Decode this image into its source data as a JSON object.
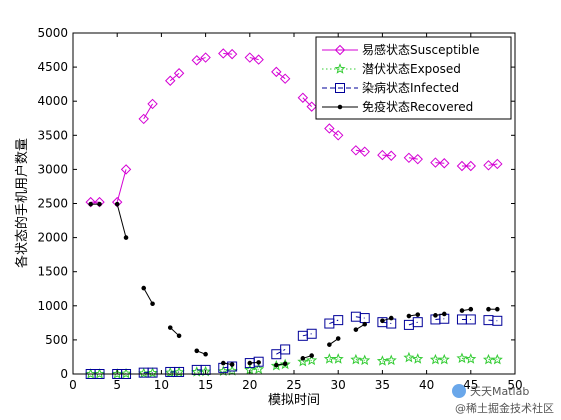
{
  "chart_data": {
    "type": "line",
    "title": "",
    "xlabel": "模拟时间",
    "ylabel": "各状态的手机用户数量",
    "xlim": [
      0,
      50
    ],
    "ylim": [
      0,
      5000
    ],
    "xticks": [
      "0",
      "5",
      "10",
      "15",
      "20",
      "25",
      "30",
      "35",
      "40",
      "45",
      "50"
    ],
    "yticks": [
      "0",
      "500",
      "1000",
      "1500",
      "2000",
      "2500",
      "3000",
      "3500",
      "4000",
      "4500",
      "5000"
    ],
    "grid": false,
    "legend_position": "top-right",
    "series": [
      {
        "name": "易感状态Susceptible",
        "color": "#d400d4",
        "marker": "diamond",
        "line": "solid",
        "x": [
          2,
          3,
          5,
          6,
          8,
          9,
          11,
          12,
          14,
          15,
          17,
          18,
          20,
          21,
          23,
          24,
          26,
          27,
          29,
          30,
          32,
          33,
          35,
          36,
          38,
          39,
          41,
          42,
          44,
          45,
          47,
          48
        ],
        "y": [
          2520,
          2520,
          2520,
          3000,
          3740,
          3960,
          4300,
          4410,
          4600,
          4640,
          4700,
          4690,
          4640,
          4610,
          4430,
          4330,
          4050,
          3920,
          3600,
          3500,
          3280,
          3260,
          3210,
          3200,
          3170,
          3150,
          3100,
          3090,
          3050,
          3050,
          3060,
          3080
        ]
      },
      {
        "name": "潜伏状态Exposed",
        "color": "#33cc33",
        "marker": "star",
        "line": "dotted",
        "x": [
          2,
          3,
          5,
          6,
          8,
          9,
          11,
          12,
          14,
          15,
          17,
          18,
          20,
          21,
          23,
          24,
          26,
          27,
          29,
          30,
          32,
          33,
          35,
          36,
          38,
          39,
          41,
          42,
          44,
          45,
          47,
          48
        ],
        "y": [
          0,
          0,
          0,
          5,
          10,
          15,
          20,
          25,
          30,
          35,
          40,
          45,
          60,
          70,
          120,
          140,
          180,
          200,
          220,
          220,
          210,
          200,
          190,
          200,
          240,
          220,
          210,
          210,
          230,
          220,
          210,
          210
        ]
      },
      {
        "name": "染病状态Infected",
        "color": "#000099",
        "marker": "square",
        "line": "dashed",
        "x": [
          2,
          3,
          5,
          6,
          8,
          9,
          11,
          12,
          14,
          15,
          17,
          18,
          20,
          21,
          23,
          24,
          26,
          27,
          29,
          30,
          32,
          33,
          35,
          36,
          38,
          39,
          41,
          42,
          44,
          45,
          47,
          48
        ],
        "y": [
          0,
          0,
          0,
          0,
          20,
          20,
          30,
          30,
          60,
          60,
          90,
          110,
          160,
          180,
          290,
          360,
          560,
          590,
          740,
          790,
          840,
          820,
          760,
          740,
          720,
          760,
          800,
          810,
          800,
          800,
          790,
          780
        ]
      },
      {
        "name": "免疫状态Recovered",
        "color": "#000000",
        "marker": "dot",
        "line": "solid",
        "x": [
          2,
          3,
          5,
          6,
          8,
          9,
          11,
          12,
          14,
          15,
          17,
          18,
          20,
          21,
          23,
          24,
          26,
          27,
          29,
          30,
          32,
          33,
          35,
          36,
          38,
          39,
          41,
          42,
          44,
          45,
          47,
          48
        ],
        "y": [
          2490,
          2490,
          2490,
          2000,
          1260,
          1030,
          680,
          560,
          340,
          290,
          160,
          140,
          160,
          170,
          130,
          150,
          230,
          270,
          430,
          520,
          650,
          730,
          780,
          820,
          850,
          870,
          860,
          880,
          930,
          950,
          950,
          950
        ]
      }
    ]
  },
  "watermark": {
    "logo_text": "天天Matlab",
    "site_text": "@稀土掘金技术社区"
  }
}
